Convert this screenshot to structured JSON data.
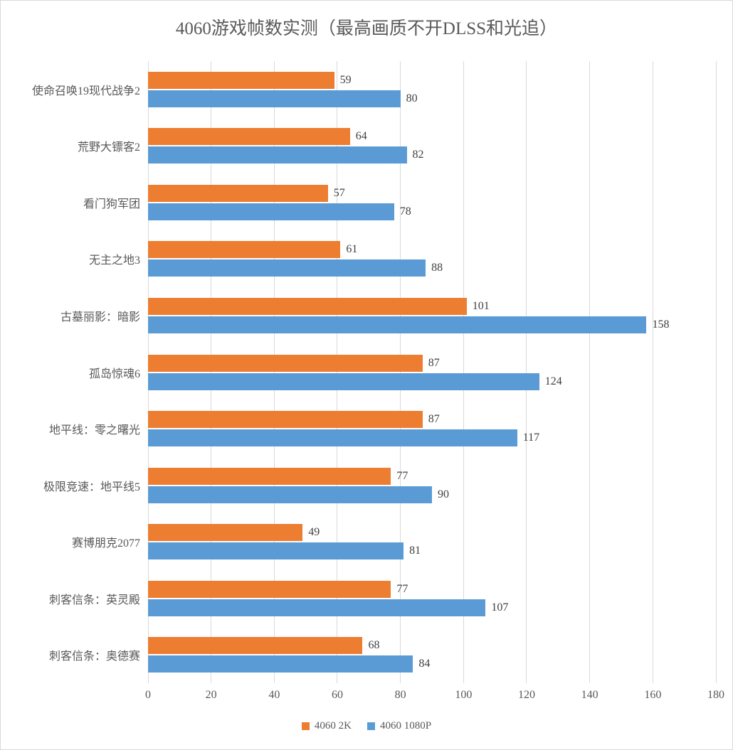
{
  "chart_data": {
    "type": "bar",
    "orientation": "horizontal",
    "title": "4060游戏帧数实测（最高画质不开DLSS和光追）",
    "categories": [
      "使命召唤19现代战争2",
      "荒野大镖客2",
      "看门狗军团",
      "无主之地3",
      "古墓丽影：暗影",
      "孤岛惊魂6",
      "地平线：零之曙光",
      "极限竞速：地平线5",
      "赛博朋克2077",
      "刺客信条：英灵殿",
      "刺客信条：奥德赛"
    ],
    "series": [
      {
        "name": "4060 2K",
        "color": "#ED7D31",
        "values": [
          59,
          64,
          57,
          61,
          101,
          87,
          87,
          77,
          49,
          77,
          68
        ]
      },
      {
        "name": "4060 1080P",
        "color": "#5B9BD5",
        "values": [
          80,
          82,
          78,
          88,
          158,
          124,
          117,
          90,
          81,
          107,
          84
        ]
      }
    ],
    "xlabel": "",
    "ylabel": "",
    "x_axis": {
      "min": 0,
      "max": 180,
      "tick_step": 20,
      "ticks": [
        0,
        20,
        40,
        60,
        80,
        100,
        120,
        140,
        160,
        180
      ]
    },
    "grid": "vertical-only",
    "legend_position": "bottom",
    "value_labels": "outside-end"
  },
  "styles": {
    "background": "#ffffff",
    "frame_border_color": "#d9d9d9",
    "gridline_color": "#d9d9d9",
    "title_color": "#595959",
    "axis_text_color": "#595959",
    "value_label_color": "#404040"
  }
}
